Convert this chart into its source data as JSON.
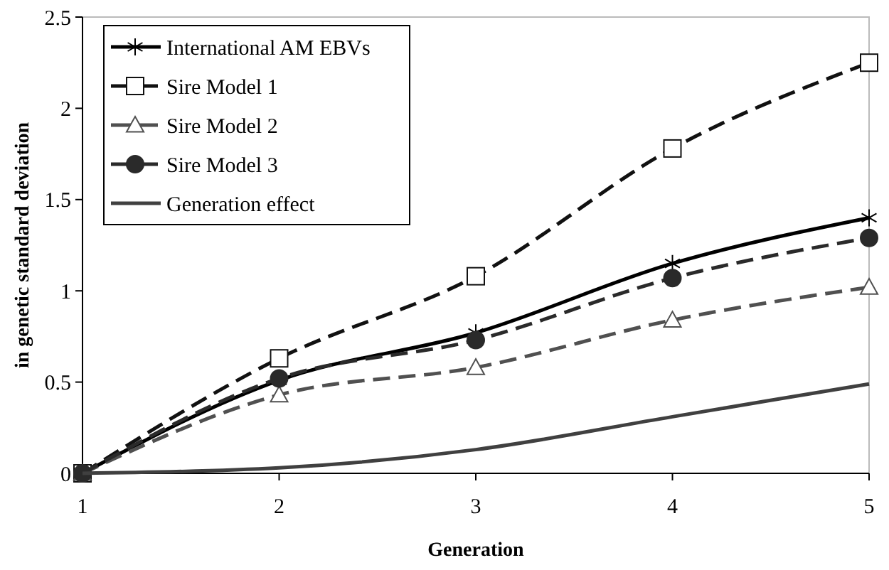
{
  "chart_data": {
    "type": "line",
    "xlabel": "Generation",
    "ylabel": "in genetic standard deviation",
    "x": [
      1,
      2,
      3,
      4,
      5
    ],
    "xlim": [
      1,
      5
    ],
    "xticks": [
      1,
      2,
      3,
      4,
      5
    ],
    "ylim": [
      0,
      2.5
    ],
    "yticks": [
      0,
      0.5,
      1,
      1.5,
      2,
      2.5
    ],
    "grid": false,
    "legend": "top left",
    "series": [
      {
        "name": "International AM EBVs",
        "color": "#000000",
        "marker": "cross",
        "line_style": "solid",
        "values": [
          0,
          0.51,
          0.77,
          1.15,
          1.4
        ]
      },
      {
        "name": "Sire Model 1",
        "color": "#111111",
        "marker": "square",
        "line_style": "dashed",
        "values": [
          0,
          0.63,
          1.08,
          1.78,
          2.25
        ]
      },
      {
        "name": "Sire Model 2",
        "color": "#505050",
        "marker": "triangle",
        "line_style": "dashed",
        "values": [
          0,
          0.43,
          0.58,
          0.84,
          1.02
        ]
      },
      {
        "name": "Sire Model 3",
        "color": "#2a2a2a",
        "marker": "circle",
        "line_style": "dashed",
        "values": [
          0,
          0.52,
          0.73,
          1.07,
          1.29
        ]
      },
      {
        "name": "Generation effect",
        "color": "#404040",
        "marker": "none",
        "line_style": "solid",
        "values": [
          0,
          0.03,
          0.13,
          0.31,
          0.49
        ]
      }
    ]
  }
}
